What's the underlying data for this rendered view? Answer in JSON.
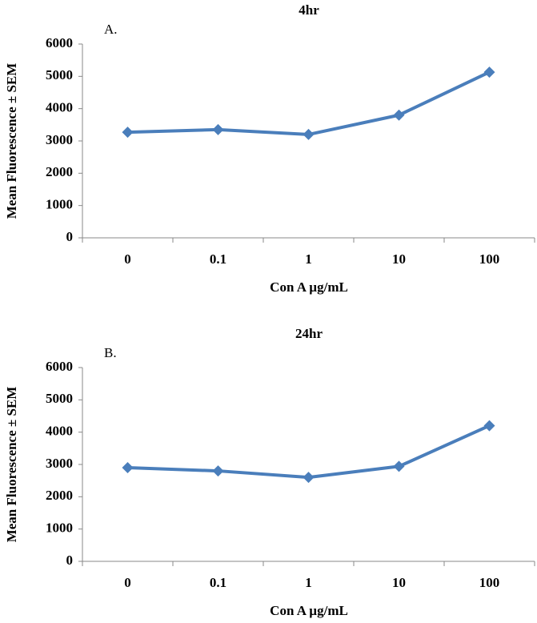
{
  "chart_data": [
    {
      "type": "line",
      "title": "4hr",
      "annotation": "A.",
      "y_label": "Mean Fluorescence ± SEM",
      "x_label": "Con A µg/mL",
      "categories": [
        "0",
        "0.1",
        "1",
        "10",
        "100"
      ],
      "values": [
        3270,
        3350,
        3200,
        3800,
        5130
      ],
      "color": "#4a7ebb",
      "ylim": [
        0,
        6000
      ],
      "yticks": [
        0,
        1000,
        2000,
        3000,
        4000,
        5000,
        6000
      ]
    },
    {
      "type": "line",
      "title": "24hr",
      "annotation": "B.",
      "y_label": "Mean Fluorescence ± SEM",
      "x_label": "Con A µg/mL",
      "categories": [
        "0",
        "0.1",
        "1",
        "10",
        "100"
      ],
      "values": [
        2900,
        2800,
        2600,
        2940,
        4200
      ],
      "color": "#4a7ebb",
      "ylim": [
        0,
        6000
      ],
      "yticks": [
        0,
        1000,
        2000,
        3000,
        4000,
        5000,
        6000
      ]
    }
  ]
}
